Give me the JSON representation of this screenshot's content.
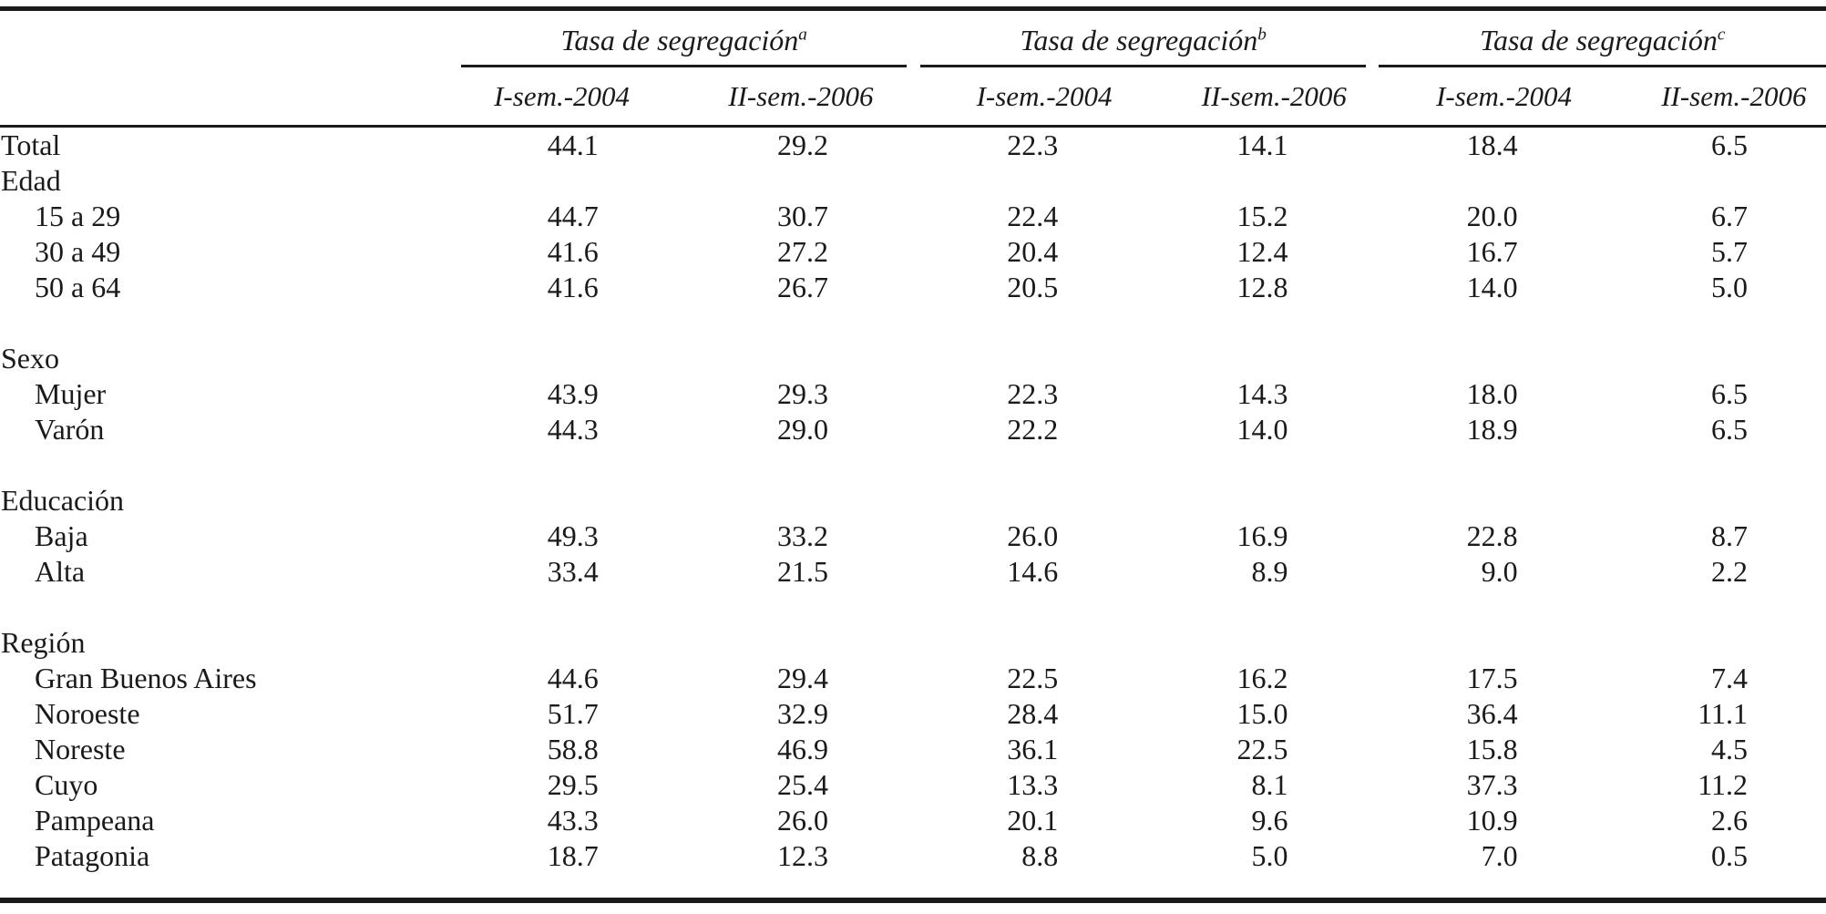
{
  "table": {
    "colors": {
      "rule": "#1a1a1a",
      "text": "#1a1a1a",
      "background": "#ffffff"
    },
    "column_groups": [
      {
        "title": "Tasa de segregación",
        "sup": "a",
        "columns": [
          "I-sem.-2004",
          "II-sem.-2006"
        ]
      },
      {
        "title": "Tasa de segregación",
        "sup": "b",
        "columns": [
          "I-sem.-2004",
          "II-sem.-2006"
        ]
      },
      {
        "title": "Tasa de segregación",
        "sup": "c",
        "columns": [
          "I-sem.-2004",
          "II-sem.-2006"
        ]
      }
    ],
    "rows": [
      {
        "type": "data",
        "label": "Total",
        "indent": false,
        "values": [
          "44.1",
          "29.2",
          "22.3",
          "14.1",
          "18.4",
          "6.5"
        ]
      },
      {
        "type": "section",
        "label": "Edad"
      },
      {
        "type": "data",
        "label": "15 a 29",
        "indent": true,
        "values": [
          "44.7",
          "30.7",
          "22.4",
          "15.2",
          "20.0",
          "6.7"
        ]
      },
      {
        "type": "data",
        "label": "30 a 49",
        "indent": true,
        "values": [
          "41.6",
          "27.2",
          "20.4",
          "12.4",
          "16.7",
          "5.7"
        ]
      },
      {
        "type": "data",
        "label": "50 a 64",
        "indent": true,
        "values": [
          "41.6",
          "26.7",
          "20.5",
          "12.8",
          "14.0",
          "5.0"
        ]
      },
      {
        "type": "spacer"
      },
      {
        "type": "section",
        "label": "Sexo"
      },
      {
        "type": "data",
        "label": "Mujer",
        "indent": true,
        "values": [
          "43.9",
          "29.3",
          "22.3",
          "14.3",
          "18.0",
          "6.5"
        ]
      },
      {
        "type": "data",
        "label": "Varón",
        "indent": true,
        "values": [
          "44.3",
          "29.0",
          "22.2",
          "14.0",
          "18.9",
          "6.5"
        ]
      },
      {
        "type": "spacer"
      },
      {
        "type": "section",
        "label": "Educación"
      },
      {
        "type": "data",
        "label": "Baja",
        "indent": true,
        "values": [
          "49.3",
          "33.2",
          "26.0",
          "16.9",
          "22.8",
          "8.7"
        ]
      },
      {
        "type": "data",
        "label": "Alta",
        "indent": true,
        "values": [
          "33.4",
          "21.5",
          "14.6",
          "8.9",
          "9.0",
          "2.2"
        ]
      },
      {
        "type": "spacer"
      },
      {
        "type": "section",
        "label": "Región"
      },
      {
        "type": "data",
        "label": "Gran Buenos Aires",
        "indent": true,
        "values": [
          "44.6",
          "29.4",
          "22.5",
          "16.2",
          "17.5",
          "7.4"
        ]
      },
      {
        "type": "data",
        "label": "Noroeste",
        "indent": true,
        "values": [
          "51.7",
          "32.9",
          "28.4",
          "15.0",
          "36.4",
          "11.1"
        ]
      },
      {
        "type": "data",
        "label": "Noreste",
        "indent": true,
        "values": [
          "58.8",
          "46.9",
          "36.1",
          "22.5",
          "15.8",
          "4.5"
        ]
      },
      {
        "type": "data",
        "label": "Cuyo",
        "indent": true,
        "values": [
          "29.5",
          "25.4",
          "13.3",
          "8.1",
          "37.3",
          "11.2"
        ]
      },
      {
        "type": "data",
        "label": "Pampeana",
        "indent": true,
        "values": [
          "43.3",
          "26.0",
          "20.1",
          "9.6",
          "10.9",
          "2.6"
        ]
      },
      {
        "type": "data",
        "label": "Patagonia",
        "indent": true,
        "values": [
          "18.7",
          "12.3",
          "8.8",
          "5.0",
          "7.0",
          "0.5"
        ]
      }
    ]
  }
}
